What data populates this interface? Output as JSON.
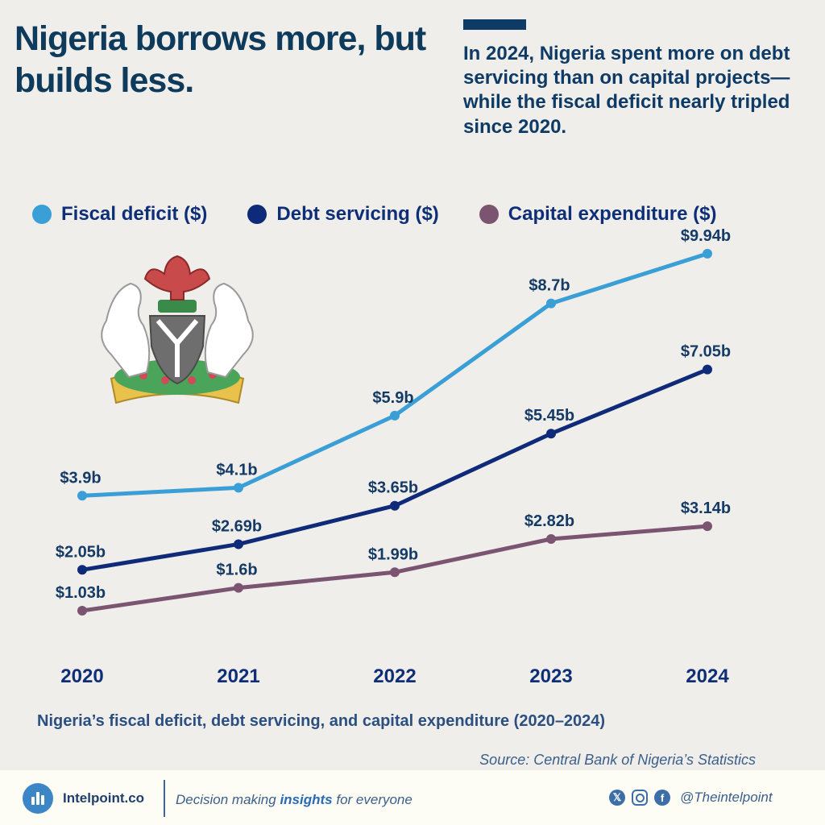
{
  "header": {
    "title": "Nigeria borrows more, but builds less.",
    "subtitle": "In 2024, Nigeria spent more on debt servicing than on capital projects—while the fiscal deficit nearly tripled since 2020."
  },
  "chart_data": {
    "type": "line",
    "title": "",
    "xlabel": "",
    "ylabel": "",
    "x": [
      "2020",
      "2021",
      "2022",
      "2023",
      "2024"
    ],
    "grid": false,
    "legend": "top",
    "series": [
      {
        "name": "Fiscal deficit ($)",
        "color": "#3a9fd6",
        "values": [
          3.9,
          4.1,
          5.9,
          8.7,
          9.94
        ],
        "labels": [
          "$3.9b",
          "$4.1b",
          "$5.9b",
          "$8.7b",
          "$9.94b"
        ]
      },
      {
        "name": "Debt servicing ($)",
        "color": "#0e2a78",
        "values": [
          2.05,
          2.69,
          3.65,
          5.45,
          7.05
        ],
        "labels": [
          "$2.05b",
          "$2.69b",
          "$3.65b",
          "$5.45b",
          "$7.05b"
        ]
      },
      {
        "name": "Capital expenditure ($)",
        "color": "#7a5470",
        "values": [
          1.03,
          1.6,
          1.99,
          2.82,
          3.14
        ],
        "labels": [
          "$1.03b",
          "$1.6b",
          "$1.99b",
          "$2.82b",
          "$3.14b"
        ]
      }
    ]
  },
  "caption": "Nigeria’s fiscal deficit, debt servicing, and capital expenditure (2020–2024)",
  "source": "Source: Central Bank of Nigeria’s Statistics",
  "footer": {
    "brand": "Intelpoint.co",
    "tagline_pre": "Decision making ",
    "tagline_bold": "insights",
    "tagline_post": " for everyone",
    "handle": "@Theintelpoint",
    "icons": [
      "x-icon",
      "instagram-icon",
      "facebook-icon"
    ]
  }
}
